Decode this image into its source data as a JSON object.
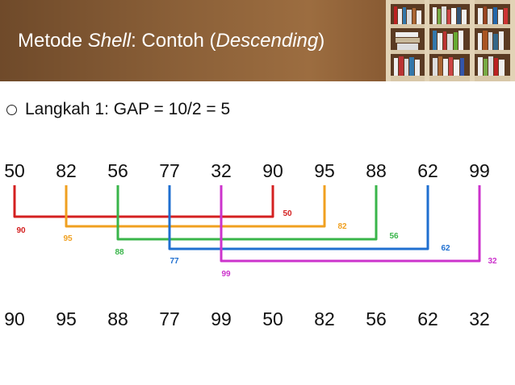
{
  "header": {
    "title_prefix": "Metode ",
    "title_italic_1": "Shell",
    "title_mid": ": Contoh (",
    "title_italic_2": "Descending",
    "title_suffix": ")"
  },
  "step": {
    "text": "Langkah 1: GAP = 10/2 = 5"
  },
  "initial_row": [
    "50",
    "82",
    "56",
    "77",
    "32",
    "90",
    "95",
    "88",
    "62",
    "99"
  ],
  "result_row": [
    "90",
    "95",
    "88",
    "77",
    "99",
    "50",
    "82",
    "56",
    "62",
    "32"
  ],
  "pairs": [
    {
      "left_label": "90",
      "right_label": "50",
      "color": "#d42020"
    },
    {
      "left_label": "95",
      "right_label": "82",
      "color": "#f0a020"
    },
    {
      "left_label": "88",
      "right_label": "56",
      "color": "#39b54a"
    },
    {
      "left_label": "77",
      "right_label": "62",
      "color": "#1f6fd0"
    },
    {
      "left_label": "99",
      "right_label": "32",
      "color": "#cc33cc"
    }
  ]
}
